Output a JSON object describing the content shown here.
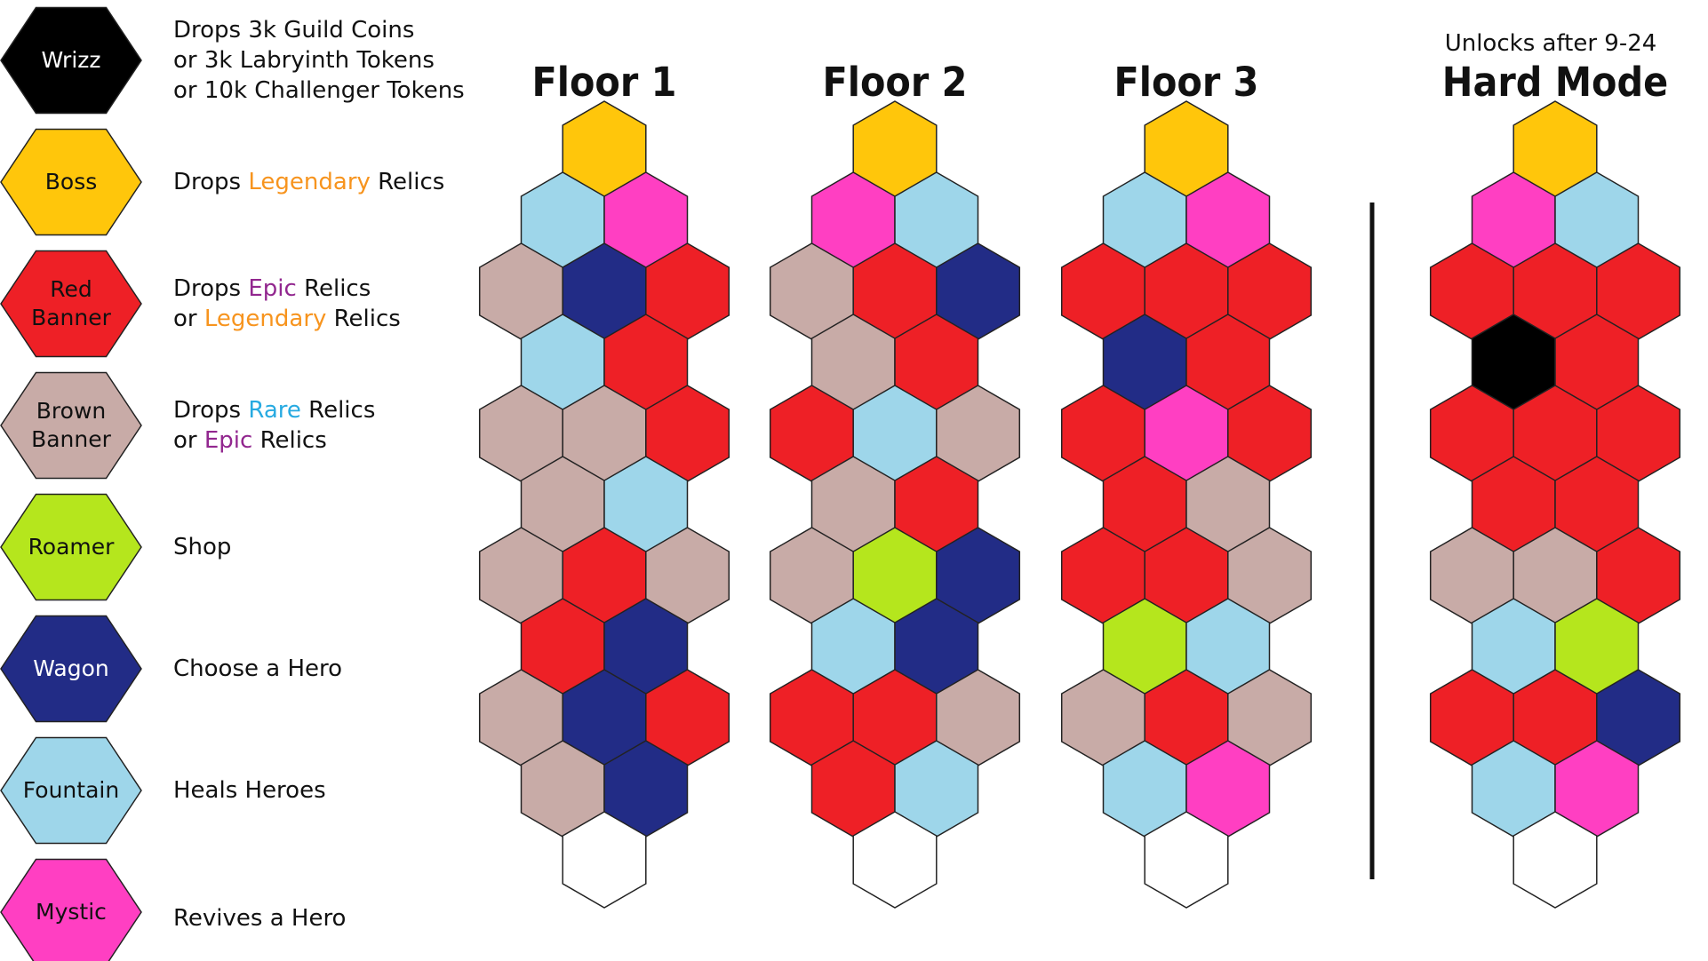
{
  "colors": {
    "Y": "#FFC60B",
    "B": "#9ED6EA",
    "P": "#FF3FC2",
    "G": "#C8ABA7",
    "N": "#222C86",
    "R": "#EE2026",
    "L": "#B5E61D",
    "K": "#000000",
    "W": "#FFFFFF",
    "legendary": "#F7941E",
    "epic": "#92278F",
    "rare": "#27AAE1"
  },
  "legend": [
    {
      "label": "Wrizz",
      "color": "K",
      "text_color": "#FFFFFF",
      "desc": [
        [
          {
            "t": "Drops 3k Guild Coins"
          }
        ],
        [
          {
            "t": "or 3k Labryinth Tokens"
          }
        ],
        [
          {
            "t": "or 10k Challenger Tokens"
          }
        ]
      ]
    },
    {
      "label": "Boss",
      "color": "Y",
      "text_color": "#111111",
      "desc": [
        [
          {
            "t": "Drops "
          },
          {
            "t": "Legendary",
            "c": "legendary"
          },
          {
            "t": " Relics"
          }
        ]
      ]
    },
    {
      "label": "Red\nBanner",
      "color": "R",
      "text_color": "#111111",
      "desc": [
        [
          {
            "t": "Drops "
          },
          {
            "t": "Epic",
            "c": "epic"
          },
          {
            "t": " Relics"
          }
        ],
        [
          {
            "t": "or "
          },
          {
            "t": "Legendary",
            "c": "legendary"
          },
          {
            "t": " Relics"
          }
        ]
      ]
    },
    {
      "label": "Brown\nBanner",
      "color": "G",
      "text_color": "#111111",
      "desc": [
        [
          {
            "t": "Drops "
          },
          {
            "t": "Rare",
            "c": "rare"
          },
          {
            "t": " Relics"
          }
        ],
        [
          {
            "t": "or "
          },
          {
            "t": "Epic",
            "c": "epic"
          },
          {
            "t": " Relics"
          }
        ]
      ]
    },
    {
      "label": "Roamer",
      "color": "L",
      "text_color": "#111111",
      "desc": [
        [
          {
            "t": "Shop"
          }
        ]
      ]
    },
    {
      "label": "Wagon",
      "color": "N",
      "text_color": "#FFFFFF",
      "desc": [
        [
          {
            "t": "Choose a Hero"
          }
        ]
      ]
    },
    {
      "label": "Fountain",
      "color": "B",
      "text_color": "#111111",
      "desc": [
        [
          {
            "t": "Heals Heroes"
          }
        ]
      ]
    },
    {
      "label": "Mystic",
      "color": "P",
      "text_color": "#111111",
      "desc": [
        [
          {
            "t": "Revives a Hero"
          }
        ]
      ]
    }
  ],
  "boards": [
    {
      "title": "Floor 1",
      "subtitle": "",
      "rows": [
        "Y",
        "BP",
        "GNR",
        "BR",
        "GGR",
        "GB",
        "GRG",
        "RN",
        "GNR",
        "GN",
        "W"
      ]
    },
    {
      "title": "Floor 2",
      "subtitle": "",
      "rows": [
        "Y",
        "PB",
        "GRN",
        "GR",
        "RBG",
        "GR",
        "GLN",
        "BN",
        "RRG",
        "RB",
        "W"
      ]
    },
    {
      "title": "Floor 3",
      "subtitle": "",
      "rows": [
        "Y",
        "BP",
        "RRR",
        "NR",
        "RPR",
        "RG",
        "RRG",
        "LB",
        "GRG",
        "BP",
        "W"
      ]
    },
    {
      "title": "Hard Mode",
      "subtitle": "Unlocks after 9-24",
      "rows": [
        "Y",
        "PB",
        "RRR",
        "KR",
        "RRR",
        "RR",
        "GGR",
        "BL",
        "RRN",
        "BP",
        "W"
      ]
    }
  ]
}
